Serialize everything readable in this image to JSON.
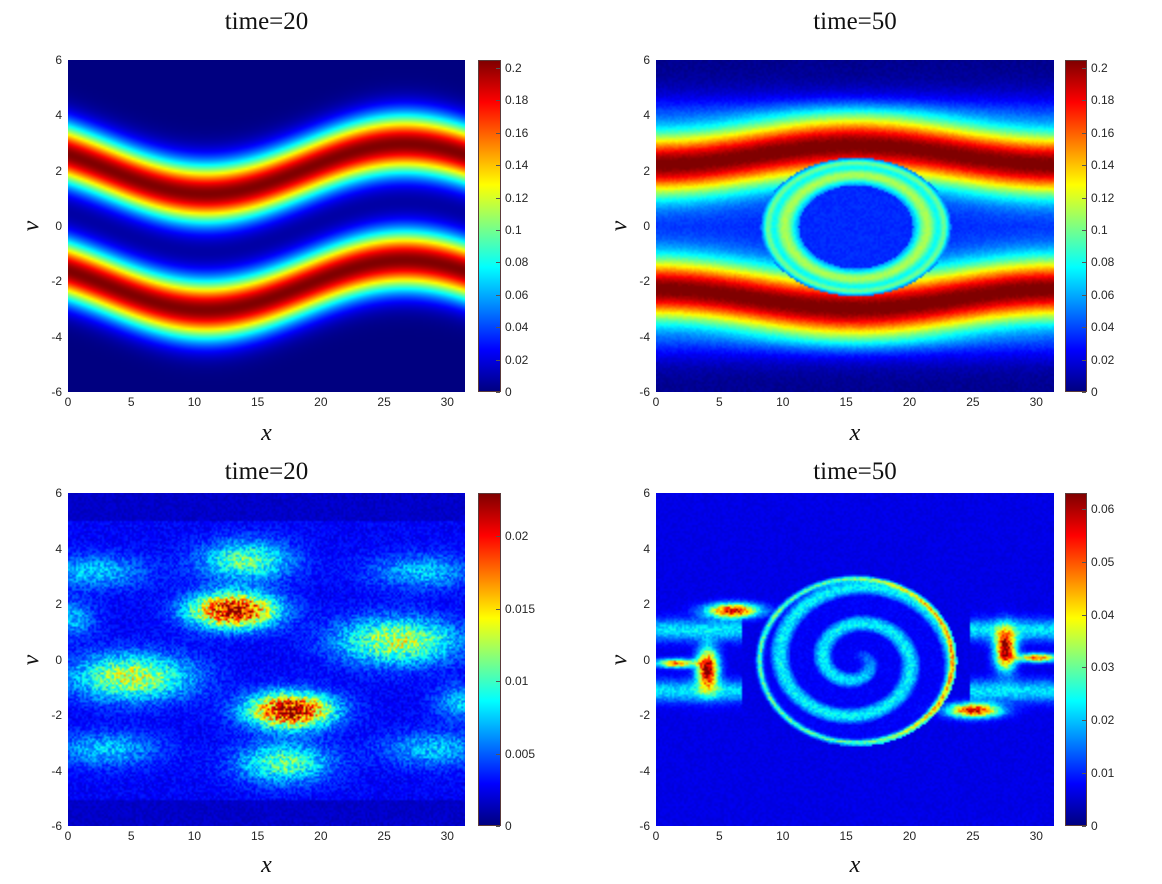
{
  "figure": {
    "panels": [
      {
        "title": "time=20",
        "xlabel": "x",
        "ylabel": "v",
        "xticks": [
          "0",
          "5",
          "10",
          "15",
          "20",
          "25",
          "30"
        ],
        "yticks": [
          "6",
          "4",
          "2",
          "0",
          "-2",
          "-4",
          "-6"
        ],
        "cbar_ticks": [
          "0.2",
          "0.18",
          "0.16",
          "0.14",
          "0.12",
          "0.1",
          "0.08",
          "0.06",
          "0.04",
          "0.02",
          "0"
        ]
      },
      {
        "title": "time=50",
        "xlabel": "x",
        "ylabel": "v",
        "xticks": [
          "0",
          "5",
          "10",
          "15",
          "20",
          "25",
          "30"
        ],
        "yticks": [
          "6",
          "4",
          "2",
          "0",
          "-2",
          "-4",
          "-6"
        ],
        "cbar_ticks": [
          "0.2",
          "0.18",
          "0.16",
          "0.14",
          "0.12",
          "0.1",
          "0.08",
          "0.06",
          "0.04",
          "0.02",
          "0"
        ]
      },
      {
        "title": "time=20",
        "xlabel": "x",
        "ylabel": "v",
        "xticks": [
          "0",
          "5",
          "10",
          "15",
          "20",
          "25",
          "30"
        ],
        "yticks": [
          "6",
          "4",
          "2",
          "0",
          "-2",
          "-4",
          "-6"
        ],
        "cbar_ticks": [
          "0.02",
          "0.015",
          "0.01",
          "0.005",
          "0"
        ]
      },
      {
        "title": "time=50",
        "xlabel": "x",
        "ylabel": "v",
        "xticks": [
          "0",
          "5",
          "10",
          "15",
          "20",
          "25",
          "30"
        ],
        "yticks": [
          "6",
          "4",
          "2",
          "0",
          "-2",
          "-4",
          "-6"
        ],
        "cbar_ticks": [
          "0.06",
          "0.05",
          "0.04",
          "0.03",
          "0.02",
          "0.01",
          "0"
        ]
      }
    ]
  },
  "chart_data": [
    {
      "type": "heatmap",
      "title": "time=20",
      "xlabel": "x",
      "ylabel": "v",
      "xlim": [
        0,
        31.4
      ],
      "ylim": [
        -6,
        6
      ],
      "xticks": [
        0,
        5,
        10,
        15,
        20,
        25,
        30
      ],
      "yticks": [
        -6,
        -4,
        -2,
        0,
        2,
        4,
        6
      ],
      "colormap": "jet",
      "clim": [
        0,
        0.205
      ],
      "colorbar_ticks": [
        0,
        0.02,
        0.04,
        0.06,
        0.08,
        0.1,
        0.12,
        0.14,
        0.16,
        0.18,
        0.2
      ],
      "description": "Two-stream distribution: two high-density bands near v=+2 and v=-2 (peak ~0.2), sinusoidally perturbed in x; low density at v=0 and |v|>4"
    },
    {
      "type": "heatmap",
      "title": "time=50",
      "xlabel": "x",
      "ylabel": "v",
      "xlim": [
        0,
        31.4
      ],
      "ylim": [
        -6,
        6
      ],
      "xticks": [
        0,
        5,
        10,
        15,
        20,
        25,
        30
      ],
      "yticks": [
        -6,
        -4,
        -2,
        0,
        2,
        4,
        6
      ],
      "colormap": "jet",
      "clim": [
        0,
        0.205
      ],
      "colorbar_ticks": [
        0,
        0.02,
        0.04,
        0.06,
        0.08,
        0.1,
        0.12,
        0.14,
        0.16,
        0.18,
        0.2
      ],
      "description": "Phase-space vortex centered at x~15, v~0 with filamented ring structure; high-density bands around |v|~2-3"
    },
    {
      "type": "heatmap",
      "title": "time=20",
      "xlabel": "x",
      "ylabel": "v",
      "xlim": [
        0,
        31.4
      ],
      "ylim": [
        -6,
        6
      ],
      "xticks": [
        0,
        5,
        10,
        15,
        20,
        25,
        30
      ],
      "yticks": [
        -6,
        -4,
        -2,
        0,
        2,
        4,
        6
      ],
      "colormap": "jet",
      "clim": [
        0,
        0.023
      ],
      "colorbar_ticks": [
        0,
        0.005,
        0.01,
        0.015,
        0.02
      ],
      "description": "Noisy error/variance field with peaks (~0.022) near (x~13, v~1.8) and (x~17.5, v~-1.8); secondary lobes ~0.012"
    },
    {
      "type": "heatmap",
      "title": "time=50",
      "xlabel": "x",
      "ylabel": "v",
      "xlim": [
        0,
        31.4
      ],
      "ylim": [
        -6,
        6
      ],
      "xticks": [
        0,
        5,
        10,
        15,
        20,
        25,
        30
      ],
      "yticks": [
        -6,
        -4,
        -2,
        0,
        2,
        4,
        6
      ],
      "colormap": "jet",
      "clim": [
        0,
        0.063
      ],
      "colorbar_ticks": [
        0,
        0.01,
        0.02,
        0.03,
        0.04,
        0.05,
        0.06
      ],
      "description": "Spiral ring structure around vortex at x~15, v~0, radius |v|<3; hot filaments (~0.06) near x~3-7 and x~24-28"
    }
  ]
}
